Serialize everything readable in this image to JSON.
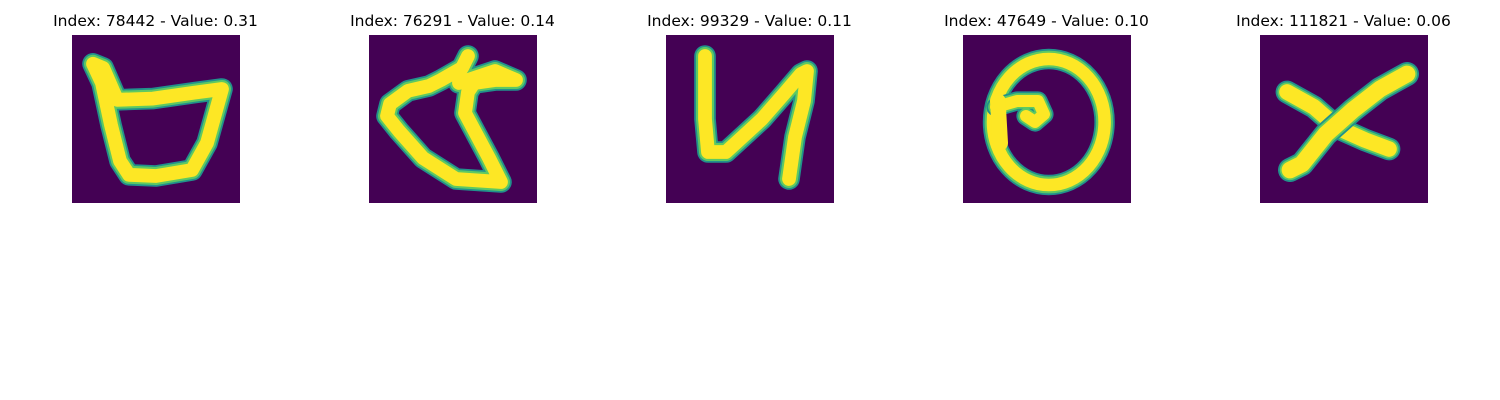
{
  "figure": {
    "panels": [
      {
        "title": "Index: 78442 - Value: 0.31",
        "glyph": "glyph-b-like"
      },
      {
        "title": "Index: 76291 - Value: 0.14",
        "glyph": "glyph-d-like"
      },
      {
        "title": "Index: 99329 - Value: 0.11",
        "glyph": "glyph-n-like"
      },
      {
        "title": "Index: 47649 - Value: 0.10",
        "glyph": "glyph-o-like"
      },
      {
        "title": "Index: 111821 - Value: 0.06",
        "glyph": "glyph-x-like"
      }
    ],
    "colors": {
      "background": "#440154",
      "stroke_outer": "#21918c",
      "stroke_mid": "#5ec962",
      "stroke_inner": "#fde725"
    }
  }
}
